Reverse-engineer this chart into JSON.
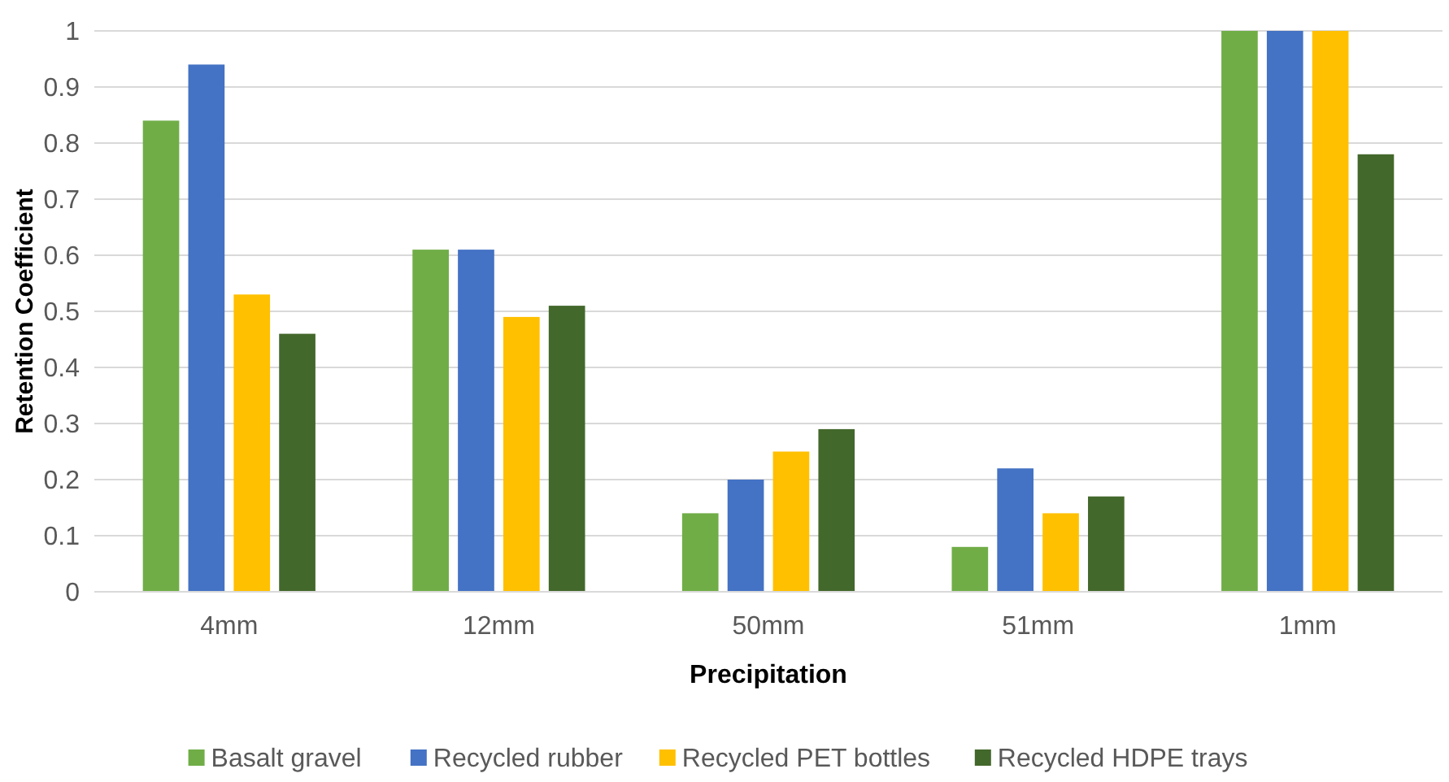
{
  "chart_data": {
    "type": "bar",
    "xlabel": "Precipitation",
    "ylabel": "Retention Coefficient",
    "categories": [
      "4mm",
      "12mm",
      "50mm",
      "51mm",
      "1mm"
    ],
    "series": [
      {
        "name": "Basalt gravel",
        "color": "#70ad47",
        "values": [
          0.84,
          0.61,
          0.14,
          0.08,
          1
        ]
      },
      {
        "name": "Recycled rubber",
        "color": "#4472c4",
        "values": [
          0.94,
          0.61,
          0.2,
          0.22,
          1
        ]
      },
      {
        "name": "Recycled PET bottles",
        "color": "#ffc000",
        "values": [
          0.53,
          0.49,
          0.25,
          0.14,
          1
        ]
      },
      {
        "name": "Recycled HDPE trays",
        "color": "#43682b",
        "values": [
          0.46,
          0.51,
          0.29,
          0.17,
          0.78
        ]
      }
    ],
    "ylim": [
      0,
      1
    ],
    "yticks": [
      0,
      0.1,
      0.2,
      0.3,
      0.4,
      0.5,
      0.6,
      0.7,
      0.8,
      0.9,
      1
    ],
    "grid": "y",
    "legend": "bottom"
  }
}
